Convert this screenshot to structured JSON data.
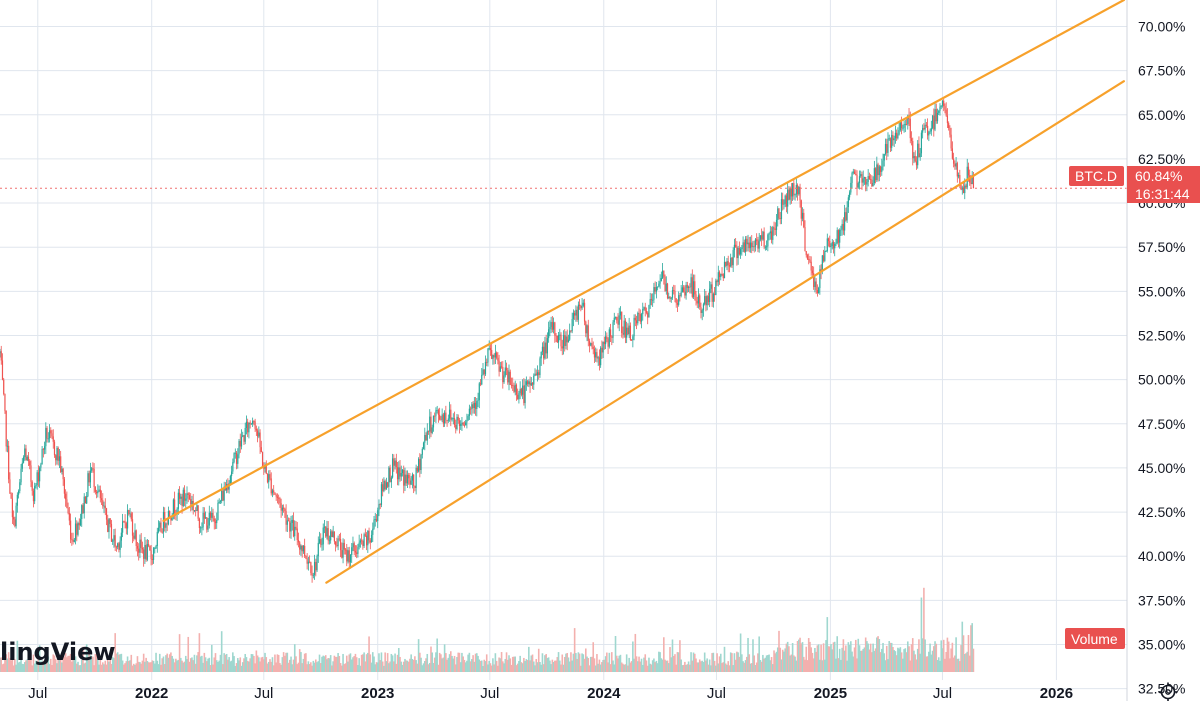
{
  "chart_data": {
    "type": "candlestick",
    "symbol": "BTC.D",
    "last_value_label": "60.84%",
    "countdown": "16:31:44",
    "volume_label": "Volume",
    "watermark": "lingView",
    "y_ticks": [
      "70.00%",
      "67.50%",
      "65.00%",
      "62.50%",
      "60.00%",
      "57.50%",
      "55.00%",
      "52.50%",
      "50.00%",
      "47.50%",
      "45.00%",
      "42.50%",
      "40.00%",
      "37.50%",
      "35.00%",
      "32.50%"
    ],
    "y_tick_values": [
      70,
      67.5,
      65,
      62.5,
      60,
      57.5,
      55,
      52.5,
      50,
      47.5,
      45,
      42.5,
      40,
      37.5,
      35,
      32.5
    ],
    "ylim": [
      31.8,
      71.5
    ],
    "x_ticks": [
      {
        "label": "Jul",
        "date": "2021-07-01",
        "year": false
      },
      {
        "label": "2022",
        "date": "2022-01-01",
        "year": true
      },
      {
        "label": "Jul",
        "date": "2022-07-01",
        "year": false
      },
      {
        "label": "2023",
        "date": "2023-01-01",
        "year": true
      },
      {
        "label": "Jul",
        "date": "2023-07-01",
        "year": false
      },
      {
        "label": "2024",
        "date": "2024-01-01",
        "year": true
      },
      {
        "label": "Jul",
        "date": "2024-07-01",
        "year": false
      },
      {
        "label": "2025",
        "date": "2025-01-01",
        "year": true
      },
      {
        "label": "Jul",
        "date": "2025-07-01",
        "year": false
      },
      {
        "label": "2026",
        "date": "2026-01-01",
        "year": true
      }
    ],
    "xlim": [
      "2021-05-01",
      "2026-04-25"
    ],
    "last_value": 60.84,
    "price_path": [
      [
        "2021-05-01",
        51.5
      ],
      [
        "2021-05-22",
        41.5
      ],
      [
        "2021-06-10",
        46.0
      ],
      [
        "2021-06-25",
        43.5
      ],
      [
        "2021-07-15",
        47.0
      ],
      [
        "2021-08-05",
        45.5
      ],
      [
        "2021-08-25",
        41.0
      ],
      [
        "2021-09-10",
        42.5
      ],
      [
        "2021-09-25",
        45.0
      ],
      [
        "2021-10-15",
        42.5
      ],
      [
        "2021-11-05",
        40.5
      ],
      [
        "2021-11-25",
        42.5
      ],
      [
        "2021-12-10",
        40.5
      ],
      [
        "2021-12-31",
        40.0
      ],
      [
        "2022-01-20",
        42.0
      ],
      [
        "2022-02-10",
        43.0
      ],
      [
        "2022-03-01",
        43.5
      ],
      [
        "2022-03-20",
        42.0
      ],
      [
        "2022-04-10",
        42.0
      ],
      [
        "2022-05-01",
        44.0
      ],
      [
        "2022-05-25",
        46.5
      ],
      [
        "2022-06-15",
        48.0
      ],
      [
        "2022-07-01",
        45.0
      ],
      [
        "2022-07-20",
        43.5
      ],
      [
        "2022-08-10",
        42.0
      ],
      [
        "2022-09-01",
        40.5
      ],
      [
        "2022-09-20",
        39.2
      ],
      [
        "2022-10-05",
        41.5
      ],
      [
        "2022-10-25",
        41.0
      ],
      [
        "2022-11-10",
        40.0
      ],
      [
        "2022-12-01",
        40.5
      ],
      [
        "2022-12-20",
        41.0
      ],
      [
        "2023-01-10",
        44.0
      ],
      [
        "2023-01-25",
        45.0
      ],
      [
        "2023-02-10",
        44.5
      ],
      [
        "2023-03-01",
        44.0
      ],
      [
        "2023-03-20",
        47.0
      ],
      [
        "2023-04-05",
        48.0
      ],
      [
        "2023-04-25",
        48.0
      ],
      [
        "2023-05-15",
        47.5
      ],
      [
        "2023-06-10",
        49.0
      ],
      [
        "2023-06-30",
        51.5
      ],
      [
        "2023-07-20",
        50.5
      ],
      [
        "2023-08-10",
        49.5
      ],
      [
        "2023-08-25",
        49.2
      ],
      [
        "2023-09-10",
        50.0
      ],
      [
        "2023-09-25",
        51.5
      ],
      [
        "2023-10-10",
        53.0
      ],
      [
        "2023-10-25",
        52.0
      ],
      [
        "2023-11-10",
        53.0
      ],
      [
        "2023-11-25",
        54.5
      ],
      [
        "2023-12-10",
        52.0
      ],
      [
        "2023-12-25",
        51.2
      ],
      [
        "2024-01-10",
        52.5
      ],
      [
        "2024-01-25",
        53.5
      ],
      [
        "2024-02-10",
        52.5
      ],
      [
        "2024-03-01",
        53.5
      ],
      [
        "2024-03-15",
        54.0
      ],
      [
        "2024-04-01",
        56.0
      ],
      [
        "2024-04-15",
        55.0
      ],
      [
        "2024-05-01",
        54.5
      ],
      [
        "2024-05-20",
        55.5
      ],
      [
        "2024-06-05",
        54.0
      ],
      [
        "2024-06-25",
        55.0
      ],
      [
        "2024-07-15",
        56.5
      ],
      [
        "2024-08-05",
        57.5
      ],
      [
        "2024-08-25",
        57.5
      ],
      [
        "2024-09-10",
        58.0
      ],
      [
        "2024-09-25",
        58.0
      ],
      [
        "2024-10-10",
        59.5
      ],
      [
        "2024-10-25",
        60.5
      ],
      [
        "2024-11-10",
        61.0
      ],
      [
        "2024-11-20",
        58.0
      ],
      [
        "2024-12-01",
        56.0
      ],
      [
        "2024-12-10",
        55.0
      ],
      [
        "2024-12-25",
        57.5
      ],
      [
        "2025-01-10",
        58.0
      ],
      [
        "2025-01-25",
        59.0
      ],
      [
        "2025-02-05",
        62.0
      ],
      [
        "2025-02-15",
        61.0
      ],
      [
        "2025-03-01",
        61.5
      ],
      [
        "2025-03-15",
        61.5
      ],
      [
        "2025-04-01",
        63.0
      ],
      [
        "2025-04-15",
        63.5
      ],
      [
        "2025-05-01",
        65.0
      ],
      [
        "2025-05-10",
        64.0
      ],
      [
        "2025-05-15",
        62.0
      ],
      [
        "2025-06-01",
        64.0
      ],
      [
        "2025-06-15",
        64.5
      ],
      [
        "2025-06-28",
        65.8
      ],
      [
        "2025-07-05",
        65.5
      ],
      [
        "2025-07-15",
        63.0
      ],
      [
        "2025-07-25",
        61.5
      ],
      [
        "2025-08-05",
        60.8
      ],
      [
        "2025-08-12",
        61.8
      ],
      [
        "2025-08-20",
        60.84
      ]
    ],
    "last_candle_date": "2025-08-20",
    "trendlines": [
      {
        "name": "upper",
        "color": "#f7a12b",
        "from": [
          "2022-01-20",
          42.0
        ],
        "to": [
          "2026-04-20",
          71.5
        ]
      },
      {
        "name": "lower",
        "color": "#f7a12b",
        "from": [
          "2022-10-10",
          38.5
        ],
        "to": [
          "2026-04-20",
          66.9
        ]
      }
    ],
    "colors": {
      "up": "#26a69a",
      "down": "#ef5350",
      "up_volume": "#9fd7cf",
      "down_volume": "#f3b0ae",
      "grid": "#e0e6ee",
      "tag": "#e9504f",
      "last_line": "#f07070"
    }
  }
}
